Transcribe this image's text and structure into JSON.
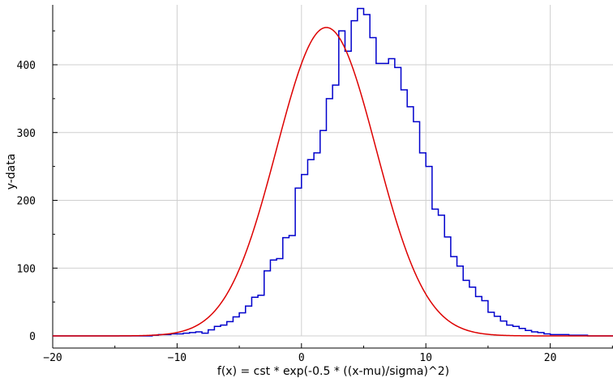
{
  "chart_data": {
    "type": "histogram-with-fit",
    "xlabel": "f(x) = cst * exp(-0.5 * ((x-mu)/sigma)^2)",
    "ylabel": "y-data",
    "xlim": [
      -20,
      25
    ],
    "ylim": [
      -3,
      486
    ],
    "x_ticks": [
      -20,
      -10,
      0,
      10,
      20
    ],
    "y_ticks": [
      0,
      100,
      200,
      300,
      400
    ],
    "grid": true,
    "histogram": {
      "color": "#0000cc",
      "bin_width": 0.5,
      "start": -20,
      "values": [
        0,
        0,
        0,
        0,
        0,
        0,
        0,
        0,
        0,
        0,
        0,
        0,
        0,
        0,
        0,
        0,
        1,
        2,
        2,
        3,
        3,
        4,
        5,
        6,
        4,
        9,
        14,
        16,
        21,
        28,
        34,
        44,
        57,
        60,
        96,
        112,
        114,
        145,
        148,
        218,
        238,
        260,
        270,
        303,
        350,
        370,
        450,
        420,
        465,
        483,
        474,
        440,
        402,
        402,
        409,
        396,
        363,
        338,
        316,
        270,
        250,
        187,
        178,
        146,
        117,
        103,
        82,
        72,
        58,
        52,
        35,
        29,
        22,
        16,
        14,
        11,
        8,
        6,
        5,
        3,
        2,
        2,
        2,
        1,
        1,
        1,
        0,
        0,
        0,
        0,
        0
      ]
    },
    "fit": {
      "color": "#dd0000",
      "cst": 455,
      "mu": 2,
      "sigma": 4
    }
  }
}
